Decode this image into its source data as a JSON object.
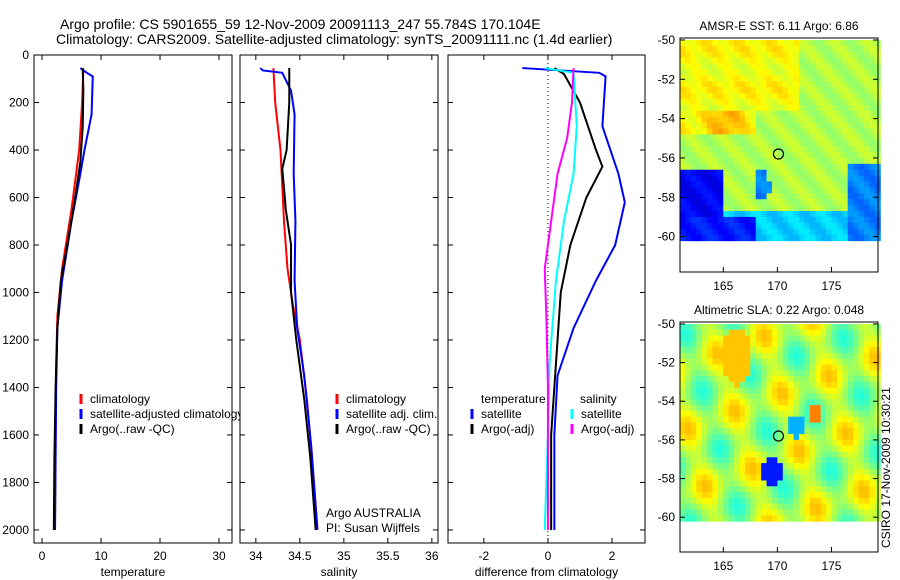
{
  "title_line1": "Argo profile: CS 5901655_59 12-Nov-2009 20091113_247 55.784S 170.104E",
  "title_line2": "Climatology: CARS2009. Satellite-adjusted climatology: synTS_20091111.nc (1.4d earlier)",
  "side_label": "CSIRO 17-Nov-2009 10:30:21",
  "chart_data": [
    {
      "type": "line",
      "name": "temperature",
      "xlabel": "temperature",
      "xlim": [
        -1.36,
        32.2
      ],
      "ylim": [
        2055,
        0
      ],
      "xticks": [
        0,
        10,
        20,
        30
      ],
      "yticks": [
        0,
        200,
        400,
        600,
        800,
        1000,
        1200,
        1400,
        1600,
        1800,
        2000
      ],
      "legend": [
        "climatology",
        "satellite-adjusted climatology",
        "Argo(..raw -QC)"
      ],
      "series": [
        {
          "name": "climatology",
          "color": "#ff0000",
          "points": [
            [
              7,
              60
            ],
            [
              6.8,
              200
            ],
            [
              6.3,
              400
            ],
            [
              5,
              650
            ],
            [
              3.4,
              900
            ],
            [
              2.6,
              1100
            ],
            [
              2.4,
              1300
            ],
            [
              2.3,
              1600
            ],
            [
              2.2,
              2000
            ]
          ]
        },
        {
          "name": "satellite-adjusted climatology",
          "color": "#0000ff",
          "points": [
            [
              6.5,
              55
            ],
            [
              7.6,
              75
            ],
            [
              8.6,
              90
            ],
            [
              8.4,
              250
            ],
            [
              7.2,
              400
            ],
            [
              6.5,
              500
            ],
            [
              5,
              700
            ],
            [
              3.4,
              950
            ],
            [
              2.6,
              1150
            ],
            [
              2.4,
              1400
            ],
            [
              2.2,
              2000
            ]
          ]
        },
        {
          "name": "Argo(..raw -QC)",
          "color": "#000000",
          "points": [
            [
              6.9,
              55
            ],
            [
              7,
              150
            ],
            [
              6.9,
              300
            ],
            [
              6.5,
              450
            ],
            [
              5.5,
              620
            ],
            [
              4.3,
              800
            ],
            [
              3.2,
              950
            ],
            [
              2.6,
              1150
            ],
            [
              2.3,
              1400
            ],
            [
              2.1,
              1700
            ],
            [
              2,
              2000
            ]
          ]
        }
      ]
    },
    {
      "type": "line",
      "name": "salinity",
      "xlabel": "salinity",
      "xlim": [
        33.82,
        36.07
      ],
      "ylim": [
        2055,
        0
      ],
      "xticks": [
        34,
        34.5,
        35,
        35.5,
        36
      ],
      "legend": [
        "climatology",
        "satellite adj. clim.",
        "Argo(..raw -QC)"
      ],
      "annotation": [
        "Argo AUSTRALIA",
        "PI: Susan Wijffels"
      ],
      "series": [
        {
          "name": "climatology",
          "color": "#ff0000",
          "points": [
            [
              34.2,
              55
            ],
            [
              34.22,
              200
            ],
            [
              34.28,
              400
            ],
            [
              34.32,
              700
            ],
            [
              34.36,
              900
            ],
            [
              34.42,
              1050
            ],
            [
              34.5,
              1200
            ],
            [
              34.58,
              1450
            ],
            [
              34.64,
              1700
            ],
            [
              34.7,
              2000
            ]
          ]
        },
        {
          "name": "satellite adj. clim.",
          "color": "#0000ff",
          "points": [
            [
              34.05,
              55
            ],
            [
              34.08,
              65
            ],
            [
              34.3,
              75
            ],
            [
              34.4,
              150
            ],
            [
              34.44,
              250
            ],
            [
              34.43,
              500
            ],
            [
              34.45,
              700
            ],
            [
              34.44,
              950
            ],
            [
              34.47,
              1150
            ],
            [
              34.55,
              1350
            ],
            [
              34.63,
              1650
            ],
            [
              34.7,
              2000
            ]
          ]
        },
        {
          "name": "Argo(..raw -QC)",
          "color": "#000000",
          "points": [
            [
              34.38,
              55
            ],
            [
              34.38,
              200
            ],
            [
              34.35,
              400
            ],
            [
              34.3,
              480
            ],
            [
              34.32,
              560
            ],
            [
              34.34,
              650
            ],
            [
              34.4,
              800
            ],
            [
              34.4,
              1000
            ],
            [
              34.46,
              1200
            ],
            [
              34.55,
              1450
            ],
            [
              34.62,
              1700
            ],
            [
              34.68,
              2000
            ]
          ]
        }
      ]
    },
    {
      "type": "line",
      "name": "difference",
      "xlabel": "difference from climatology",
      "xlim": [
        -3.12,
        3.03
      ],
      "ylim": [
        2055,
        0
      ],
      "xticks": [
        -2,
        0,
        2
      ],
      "legend_temperature": {
        "header": "temperature",
        "items": [
          "satellite",
          "Argo(-adj)"
        ]
      },
      "legend_salinity": {
        "header": "salinity",
        "items": [
          "satellite",
          "Argo(-adj)"
        ]
      },
      "series": [
        {
          "name": "temperature satellite",
          "color": "#0000ff",
          "points": [
            [
              -0.8,
              55
            ],
            [
              1.6,
              75
            ],
            [
              1.8,
              90
            ],
            [
              1.7,
              300
            ],
            [
              2.2,
              500
            ],
            [
              2.4,
              620
            ],
            [
              2.1,
              800
            ],
            [
              1.5,
              950
            ],
            [
              0.8,
              1150
            ],
            [
              0.3,
              1350
            ],
            [
              0.2,
              1600
            ],
            [
              0.2,
              2000
            ]
          ]
        },
        {
          "name": "temperature Argo(-adj)",
          "color": "#000000",
          "points": [
            [
              0.2,
              55
            ],
            [
              0.5,
              80
            ],
            [
              1,
              200
            ],
            [
              1.5,
              400
            ],
            [
              1.7,
              470
            ],
            [
              1.2,
              600
            ],
            [
              0.7,
              800
            ],
            [
              0.4,
              1000
            ],
            [
              0.25,
              1300
            ],
            [
              0.1,
              1600
            ],
            [
              0.1,
              2000
            ]
          ]
        },
        {
          "name": "salinity satellite",
          "color": "#00ffff",
          "points": [
            [
              -0.1,
              55
            ],
            [
              0.8,
              75
            ],
            [
              0.9,
              300
            ],
            [
              0.8,
              500
            ],
            [
              0.5,
              700
            ],
            [
              0.25,
              950
            ],
            [
              0.05,
              1300
            ],
            [
              0,
              1600
            ],
            [
              -0.1,
              2000
            ]
          ]
        },
        {
          "name": "salinity Argo(-adj)",
          "color": "#ff00ff",
          "points": [
            [
              0.8,
              55
            ],
            [
              0.75,
              200
            ],
            [
              0.6,
              350
            ],
            [
              0.3,
              500
            ],
            [
              0.1,
              700
            ],
            [
              -0.1,
              900
            ],
            [
              -0.05,
              1100
            ],
            [
              0,
              1400
            ],
            [
              0,
              2000
            ]
          ]
        }
      ]
    },
    {
      "type": "heatmap",
      "name": "sst_map",
      "title": "AMSR-E SST: 6.11 Argo: 6.86",
      "xlim": [
        161,
        179.3
      ],
      "ylim": [
        -61.8,
        -49.9
      ],
      "xticks": [
        165,
        170,
        175
      ],
      "yticks": [
        -50,
        -52,
        -54,
        -56,
        -58,
        -60
      ],
      "marker": [
        170.1,
        -55.8
      ]
    },
    {
      "type": "heatmap",
      "name": "sla_map",
      "title": "Altimetric SLA: 0.22 Argo: 0.048",
      "xlim": [
        161,
        179.3
      ],
      "ylim": [
        -61.8,
        -49.9
      ],
      "xticks": [
        165,
        170,
        175
      ],
      "yticks": [
        -50,
        -52,
        -54,
        -56,
        -58,
        -60
      ],
      "marker": [
        170.1,
        -55.8
      ]
    }
  ]
}
